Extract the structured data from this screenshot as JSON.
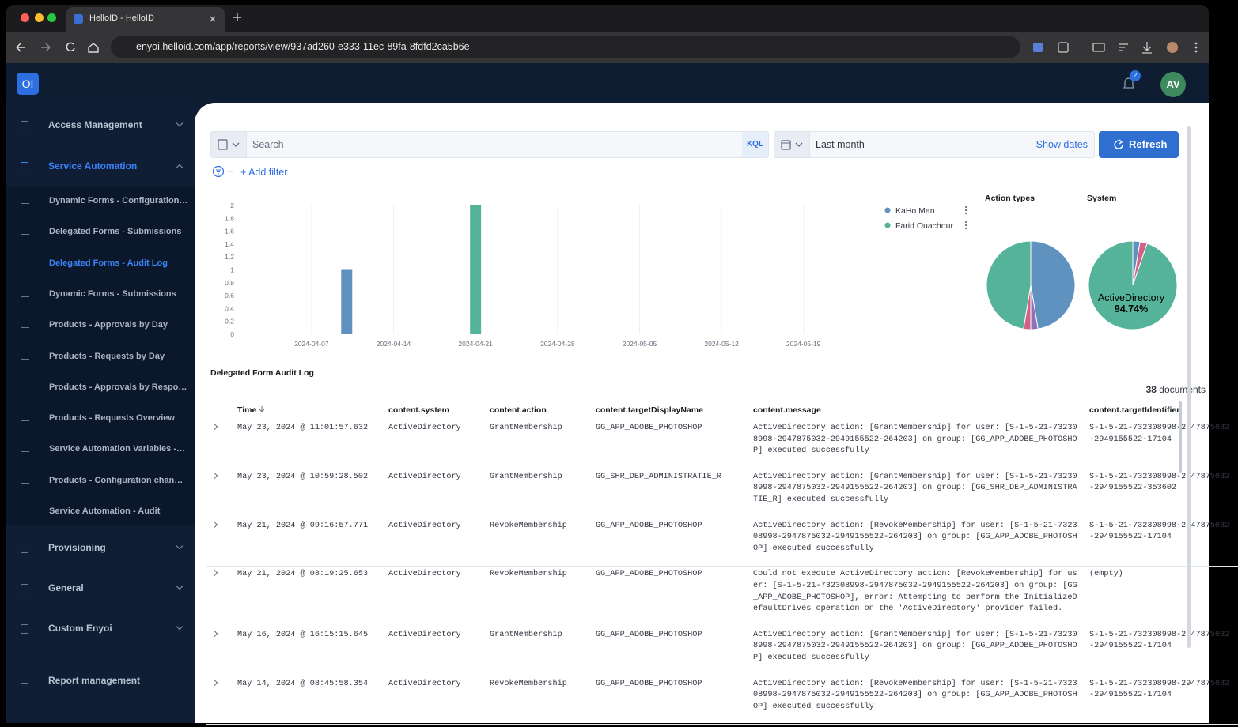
{
  "browser": {
    "tab_title": "HelloID - HelloID",
    "url": "enyoi.helloid.com/app/reports/view/937ad260-e333-11ec-89fa-8fdfd2ca5b6e"
  },
  "app": {
    "logo": "OI",
    "notifications": 2,
    "avatar": "AV"
  },
  "sidebar": {
    "sections": [
      "Access Management",
      "Service Automation",
      "Provisioning",
      "General",
      "Custom Enyoi"
    ],
    "reports": [
      "Dynamic Forms - Configuration…",
      "Delegated Forms - Submissions",
      "Delegated Forms - Audit Log",
      "Dynamic Forms - Submissions",
      "Products - Approvals by Day",
      "Products - Requests by Day",
      "Products - Approvals by Respo…",
      "Products - Requests Overview",
      "Service Automation Variables -…",
      "Products - Configuration chan…",
      "Service Automation - Audit"
    ],
    "footer": "Report management"
  },
  "toolbar": {
    "search": "Search",
    "kql": "KQL",
    "date_range": "Last month",
    "show_dates": "Show dates",
    "refresh": "Refresh",
    "add_filter": "+ Add filter"
  },
  "chart_data": [
    {
      "type": "bar",
      "series": [
        {
          "name": "KaHo Man",
          "color": "#6092c0",
          "x": [
            "2024-04-10"
          ],
          "values": [
            1
          ]
        },
        {
          "name": "Farid Ouachour",
          "color": "#54b399",
          "x": [
            "2024-04-21"
          ],
          "values": [
            2
          ]
        }
      ],
      "xlim": [
        "2024-04-01",
        "2024-05-23"
      ],
      "xticks": [
        "2024-04-07",
        "2024-04-14",
        "2024-04-21",
        "2024-04-28",
        "2024-05-05",
        "2024-05-12",
        "2024-05-19"
      ],
      "ylim": [
        0,
        2
      ],
      "yticks": [
        0,
        0.2,
        0.4,
        0.6,
        0.8,
        1,
        1.2,
        1.4,
        1.6,
        1.8,
        2
      ],
      "grid": true
    },
    {
      "type": "pie",
      "title": "Action types",
      "categories": [
        null,
        null,
        null,
        null
      ],
      "values": [
        47.37,
        2.63,
        2.63,
        47.37
      ],
      "colors": [
        "#6092c0",
        "#9170b8",
        "#d36086",
        "#54b399"
      ]
    },
    {
      "type": "pie",
      "title": "System",
      "categories": [
        null,
        null,
        "ActiveDirectory"
      ],
      "values": [
        2.63,
        2.63,
        94.74
      ],
      "value_labels": [
        null,
        null,
        "94.74%"
      ],
      "colors": [
        "#6092c0",
        "#d36086",
        "#54b399"
      ]
    }
  ],
  "table": {
    "title": "Delegated Form Audit Log",
    "document_count": 38,
    "document_label": "documents",
    "columns": [
      "Time",
      "content.system",
      "content.action",
      "content.targetDisplayName",
      "content.message",
      "content.targetIdentifier"
    ],
    "rows": [
      [
        "May 23, 2024 @ 11:01:57.632",
        "ActiveDirectory",
        "GrantMembership",
        "GG_APP_ADOBE_PHOTOSHOP",
        "ActiveDirectory action: [GrantMembership] for user: [S-1-5-21-732308998-2947875032-2949155522-264203] on group: [GG_APP_ADOBE_PHOTOSHOP] executed successfully",
        "S-1-5-21-732308998-2947875032-2949155522-17104"
      ],
      [
        "May 23, 2024 @ 10:59:28.502",
        "ActiveDirectory",
        "GrantMembership",
        "GG_SHR_DEP_ADMINISTRATIE_R",
        "ActiveDirectory action: [GrantMembership] for user: [S-1-5-21-732308998-2947875032-2949155522-264203] on group: [GG_SHR_DEP_ADMINISTRATIE_R] executed successfully",
        "S-1-5-21-732308998-2947875032-2949155522-353602"
      ],
      [
        "May 21, 2024 @ 09:16:57.771",
        "ActiveDirectory",
        "RevokeMembership",
        "GG_APP_ADOBE_PHOTOSHOP",
        "ActiveDirectory action: [RevokeMembership] for user: [S-1-5-21-732308998-2947875032-2949155522-264203] on group: [GG_APP_ADOBE_PHOTOSHOP] executed successfully",
        "S-1-5-21-732308998-2947875032-2949155522-17104"
      ],
      [
        "May 21, 2024 @ 08:19:25.653",
        "ActiveDirectory",
        "RevokeMembership",
        "GG_APP_ADOBE_PHOTOSHOP",
        "Could not execute ActiveDirectory action: [RevokeMembership] for user: [S-1-5-21-732308998-2947875032-2949155522-264203] on group: [GG_APP_ADOBE_PHOTOSHOP], error: Attempting to perform the InitializeDefaultDrives operation on the 'ActiveDirectory' provider failed.",
        "(empty)"
      ],
      [
        "May 16, 2024 @ 16:15:15.645",
        "ActiveDirectory",
        "GrantMembership",
        "GG_APP_ADOBE_PHOTOSHOP",
        "ActiveDirectory action: [GrantMembership] for user: [S-1-5-21-732308998-2947875032-2949155522-264203] on group: [GG_APP_ADOBE_PHOTOSHOP] executed successfully",
        "S-1-5-21-732308998-2947875032-2949155522-17104"
      ],
      [
        "May 14, 2024 @ 08:45:58.354",
        "ActiveDirectory",
        "RevokeMembership",
        "GG_APP_ADOBE_PHOTOSHOP",
        "ActiveDirectory action: [RevokeMembership] for user: [S-1-5-21-732308998-2947875032-2949155522-264203] on group: [GG_APP_ADOBE_PHOTOSHOP] executed successfully",
        "S-1-5-21-732308998-2947875032-2949155522-17104"
      ]
    ]
  }
}
